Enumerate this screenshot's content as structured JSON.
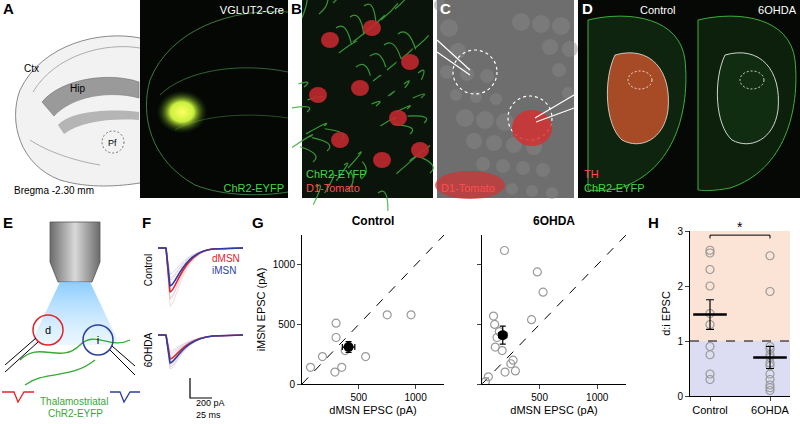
{
  "panels": {
    "A": {
      "label": "A",
      "atlas": [
        "Ctx",
        "Hip",
        "Pf"
      ],
      "coordinate": "Bregma -2.30 mm",
      "line": "VGLUT2-Cre",
      "stain": "ChR2-EYFP"
    },
    "B": {
      "label": "B",
      "stains": [
        "ChR2-EYFP",
        "D1-Tomato"
      ]
    },
    "C": {
      "label": "C",
      "stain": "D1-Tomato"
    },
    "D": {
      "label": "D",
      "conditions": [
        "Control",
        "6OHDA"
      ],
      "stains": [
        "TH",
        "ChR2-EYFP"
      ]
    },
    "E": {
      "label": "E",
      "cells": [
        "d",
        "i"
      ],
      "fibers": [
        "Thalamostriatal",
        "ChR2-EYFP"
      ]
    },
    "F": {
      "label": "F",
      "conditions": [
        "Control",
        "6OHDA"
      ],
      "cells": [
        "dMSN",
        "iMSN"
      ],
      "colors": [
        "#e0242b",
        "#2b3fa0"
      ],
      "scale_current": "200 pA",
      "scale_time": "25 ms"
    },
    "G": {
      "label": "G"
    },
    "H": {
      "label": "H"
    }
  },
  "chart_data": [
    {
      "type": "scatter",
      "title": "Control",
      "x_label": "dMSN EPSC (pA)",
      "y_label": "iMSN EPSC (pA)",
      "x": [
        75,
        180,
        290,
        300,
        300,
        350,
        380,
        560,
        750,
        960
      ],
      "values": [
        140,
        230,
        100,
        510,
        390,
        140,
        280,
        230,
        580,
        580
      ],
      "color": "#9a9a9a",
      "marker": "open circle",
      "mean": {
        "x": 410,
        "y": 310,
        "x_error": 55,
        "y_error": 45,
        "color": "#000000"
      },
      "xlim": [
        0,
        1250
      ],
      "ylim": [
        0,
        1250
      ],
      "xticks": [
        500,
        1000
      ],
      "yticks": [
        0,
        500,
        1000
      ]
    },
    {
      "type": "scatter",
      "title": "6OHDA",
      "x_label": "dMSN EPSC (pA)",
      "x": [
        30,
        55,
        100,
        110,
        115,
        130,
        150,
        175,
        200,
        195,
        250,
        270,
        290,
        430,
        480,
        530
      ],
      "values": [
        20,
        60,
        570,
        500,
        310,
        390,
        440,
        280,
        100,
        1120,
        170,
        200,
        110,
        540,
        940,
        770
      ],
      "color": "#9a9a9a",
      "marker": "open circle",
      "mean": {
        "x": 180,
        "y": 410,
        "x_error": 35,
        "y_error": 75,
        "color": "#000000"
      },
      "xlim": [
        0,
        1250
      ],
      "ylim": [
        0,
        1250
      ],
      "xticks": [
        500,
        1000
      ],
      "yticks": [
        0,
        500,
        1000
      ],
      "tick_labels": "x"
    },
    {
      "type": "strip",
      "y_label": "d:i EPSC",
      "categories": [
        "Control",
        "6OHDA"
      ],
      "points": [
        [
          2.65,
          2.6,
          2.3,
          2.0,
          1.5,
          1.3,
          0.9,
          0.75,
          0.4,
          0.3
        ],
        [
          2.55,
          1.9,
          0.9,
          0.85,
          0.75,
          0.7,
          0.6,
          0.55,
          0.4,
          0.3,
          0.2,
          0.15,
          0.1
        ]
      ],
      "means": [
        1.48,
        0.7
      ],
      "errors": [
        0.27,
        0.2
      ],
      "reference_y": 1,
      "significance": "*",
      "color": "#9a9a9a",
      "marker": "open circle",
      "ylim": [
        0,
        3
      ],
      "yticks": [
        0,
        1,
        2,
        3
      ]
    }
  ]
}
